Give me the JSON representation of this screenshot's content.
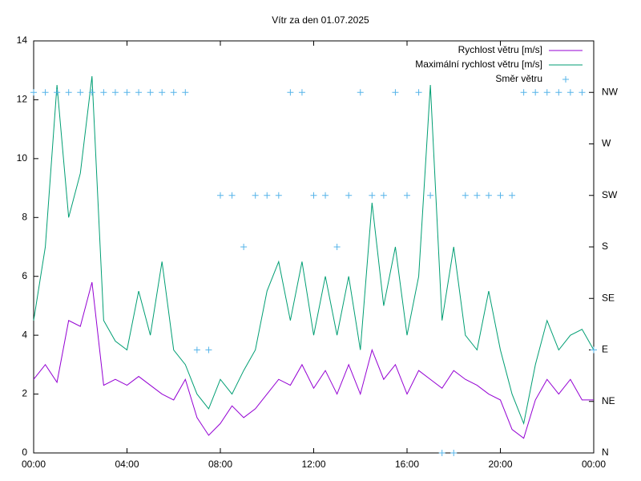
{
  "chart_data": {
    "type": "line",
    "title": "Vítr za den 01.07.2025",
    "x": [
      0,
      0.5,
      1,
      1.5,
      2,
      2.5,
      3,
      3.5,
      4,
      4.5,
      5,
      5.5,
      6,
      6.5,
      7,
      7.5,
      8,
      8.5,
      9,
      9.5,
      10,
      10.5,
      11,
      11.5,
      12,
      12.5,
      13,
      13.5,
      14,
      14.5,
      15,
      15.5,
      16,
      16.5,
      17,
      17.5,
      18,
      18.5,
      19,
      19.5,
      20,
      20.5,
      21,
      21.5,
      22,
      22.5,
      23,
      23.5,
      24
    ],
    "series": [
      {
        "name": "Rychlost větru [m/s]",
        "color": "#9400d3",
        "values": [
          2.5,
          3.0,
          2.4,
          4.5,
          4.3,
          5.8,
          2.3,
          2.5,
          2.3,
          2.6,
          2.3,
          2.0,
          1.8,
          2.5,
          1.2,
          0.6,
          1.0,
          1.6,
          1.2,
          1.5,
          2.0,
          2.5,
          2.3,
          3.0,
          2.2,
          2.8,
          2.0,
          3.0,
          2.0,
          3.5,
          2.5,
          3.0,
          2.0,
          2.8,
          2.5,
          2.2,
          2.8,
          2.5,
          2.3,
          2.0,
          1.8,
          0.8,
          0.5,
          1.8,
          2.5,
          2.0,
          2.5,
          1.8,
          1.8
        ]
      },
      {
        "name": "Maximální rychlost větru [m/s]",
        "color": "#009e73",
        "values": [
          4.5,
          7.0,
          12.5,
          8.0,
          9.5,
          12.8,
          4.5,
          3.8,
          3.5,
          5.5,
          4.0,
          6.5,
          3.5,
          3.0,
          2.0,
          1.5,
          2.5,
          2.0,
          2.8,
          3.5,
          5.5,
          6.5,
          4.5,
          6.5,
          4.0,
          6.0,
          4.0,
          6.0,
          3.5,
          8.5,
          5.0,
          7.0,
          4.0,
          6.0,
          12.5,
          4.5,
          7.0,
          4.0,
          3.5,
          5.5,
          3.5,
          2.0,
          1.0,
          3.0,
          4.5,
          3.5,
          4.0,
          4.2,
          3.5
        ]
      },
      {
        "name": "Směr větru",
        "color": "#56b4e9",
        "type": "scatter",
        "axis": "y2",
        "values": [
          7,
          7,
          7,
          7,
          7,
          7,
          7,
          7,
          7,
          7,
          7,
          7,
          7,
          7,
          2,
          2,
          5,
          5,
          4,
          5,
          5,
          5,
          7,
          7,
          5,
          5,
          4,
          5,
          7,
          5,
          5,
          7,
          5,
          7,
          5,
          0,
          0,
          5,
          5,
          5,
          5,
          5,
          7,
          7,
          7,
          7,
          7,
          7,
          2
        ]
      }
    ],
    "xlim": [
      0,
      24
    ],
    "xticks": [
      {
        "value": 0,
        "label": "00:00"
      },
      {
        "value": 4,
        "label": "04:00"
      },
      {
        "value": 8,
        "label": "08:00"
      },
      {
        "value": 12,
        "label": "12:00"
      },
      {
        "value": 16,
        "label": "16:00"
      },
      {
        "value": 20,
        "label": "20:00"
      },
      {
        "value": 24,
        "label": "00:00"
      }
    ],
    "ylim": [
      0,
      14
    ],
    "yticks": [
      0,
      2,
      4,
      6,
      8,
      10,
      12,
      14
    ],
    "y2lim": [
      0,
      8
    ],
    "y2ticks": [
      {
        "value": 0,
        "label": "N"
      },
      {
        "value": 1,
        "label": "NE"
      },
      {
        "value": 2,
        "label": "E"
      },
      {
        "value": 3,
        "label": "SE"
      },
      {
        "value": 4,
        "label": "S"
      },
      {
        "value": 5,
        "label": "SW"
      },
      {
        "value": 6,
        "label": "W"
      },
      {
        "value": 7,
        "label": "NW"
      }
    ],
    "legend": "top-right"
  }
}
